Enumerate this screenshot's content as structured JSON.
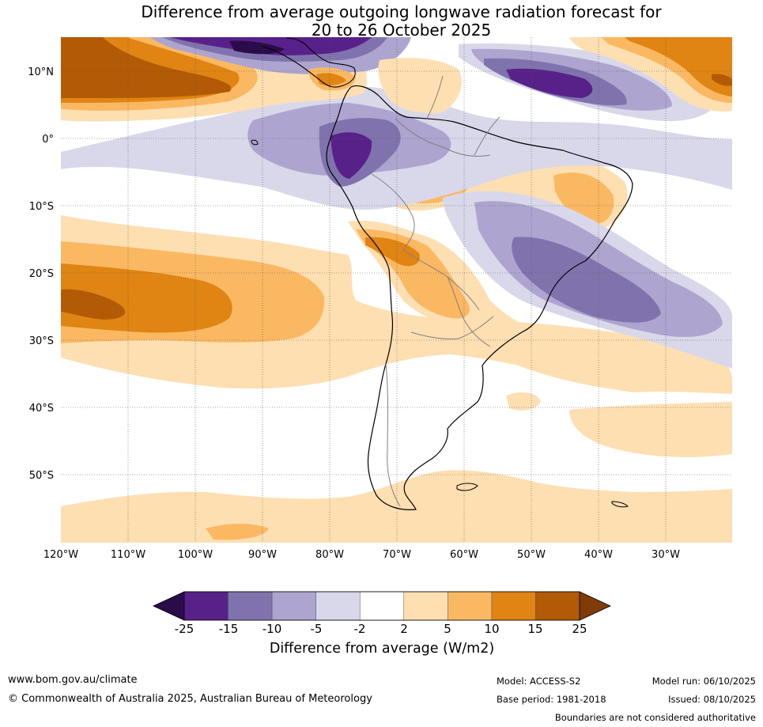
{
  "title": {
    "line1": "Difference from average outgoing longwave radiation forecast for",
    "line2": "20 to 26 October 2025"
  },
  "map": {
    "lat_labels": [
      "10°N",
      "0°",
      "10°S",
      "20°S",
      "30°S",
      "40°S",
      "50°S"
    ],
    "lon_labels": [
      "120°W",
      "110°W",
      "100°W",
      "90°W",
      "80°W",
      "70°W",
      "60°W",
      "50°W",
      "40°W",
      "30°W"
    ]
  },
  "colorbar": {
    "ticks": [
      "-25",
      "-15",
      "-10",
      "-5",
      "-2",
      "2",
      "5",
      "10",
      "15",
      "25"
    ],
    "colors": [
      "#58218a",
      "#8073ad",
      "#ada5cf",
      "#d9d8ea",
      "#ffffff",
      "#fedfb2",
      "#fbb863",
      "#e08413",
      "#b35a06"
    ],
    "low_extend_color": "#2b0c4b",
    "high_extend_color": "#7f3b08",
    "label": "Difference from average (W/m2)"
  },
  "footer": {
    "website": "www.bom.gov.au/climate",
    "copyright": "© Commonwealth of Australia 2025, Australian Bureau of Meteorology",
    "model": "Model: ACCESS-S2",
    "base_period": "Base period: 1981-2018",
    "model_run": "Model run: 06/10/2025",
    "issued": "Issued: 08/10/2025",
    "disclaimer": "Boundaries are not considered authoritative"
  }
}
